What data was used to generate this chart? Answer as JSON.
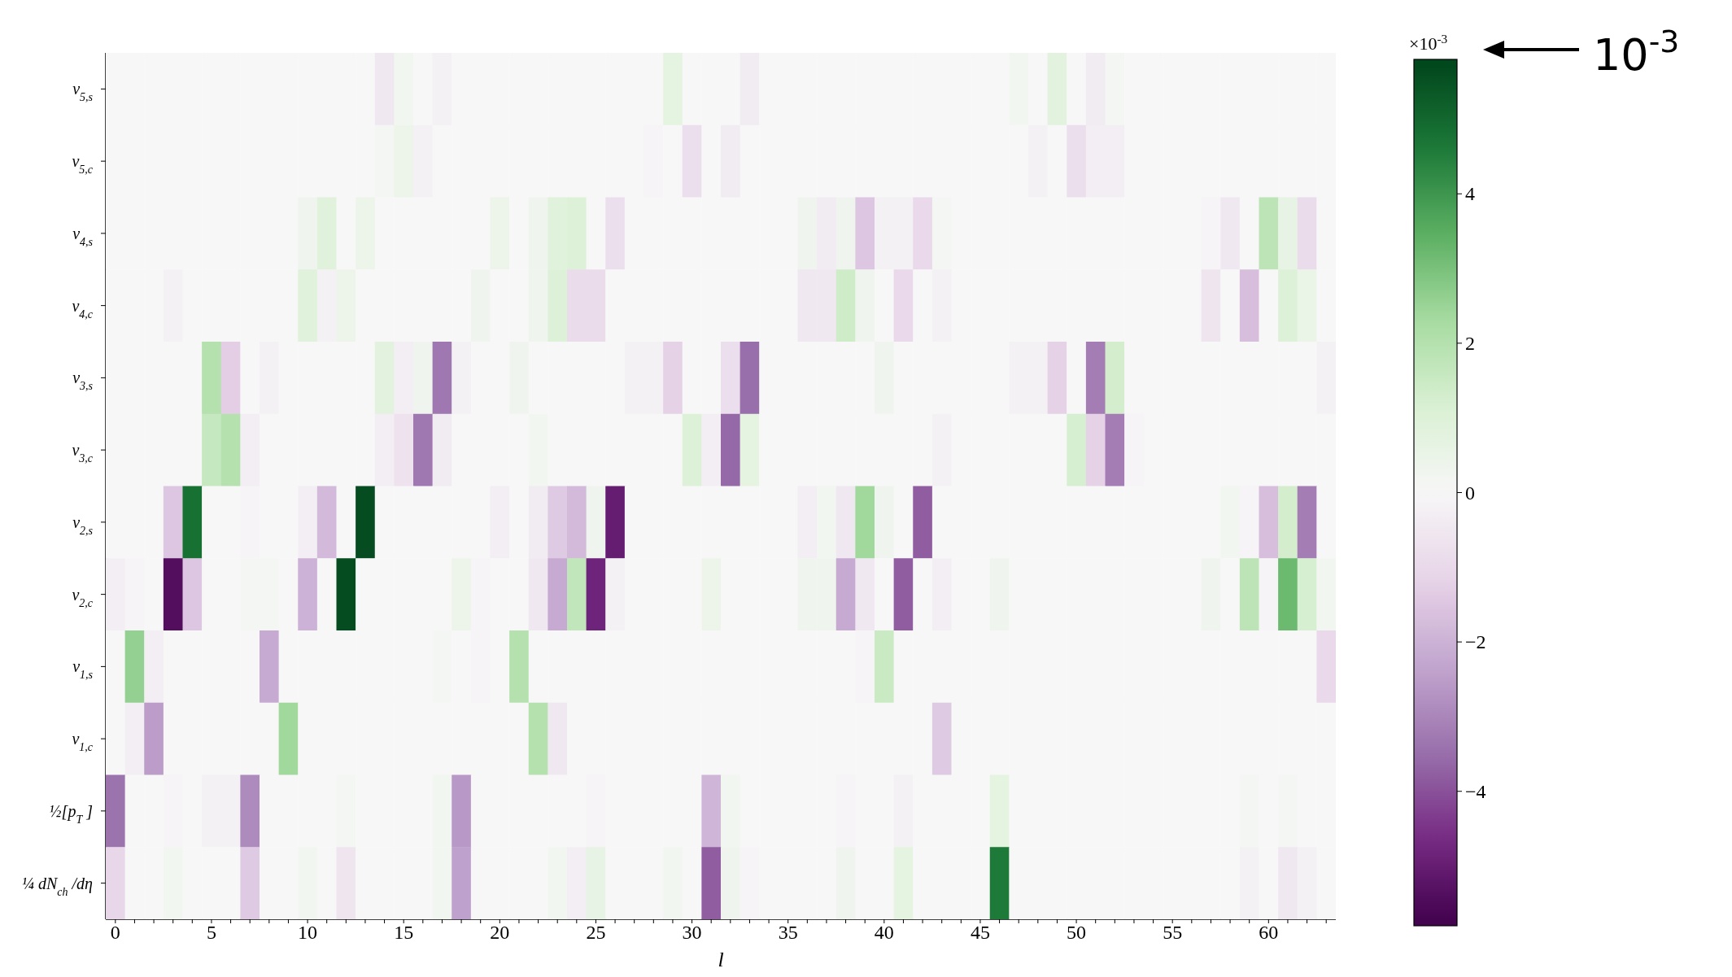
{
  "chart_data": {
    "type": "heatmap",
    "categories": [
      "0",
      null,
      null,
      null,
      null,
      "5",
      null,
      null,
      null,
      null,
      "10",
      null,
      null,
      null,
      null,
      "15",
      null,
      null,
      null,
      null,
      "20",
      null,
      null,
      null,
      null,
      "25",
      null,
      null,
      null,
      null,
      "30",
      null,
      null,
      null,
      null,
      "35",
      null,
      null,
      null,
      null,
      "40",
      null,
      null,
      null,
      null,
      "45",
      null,
      null,
      null,
      null,
      "50",
      null,
      null,
      null,
      null,
      "55",
      null,
      null,
      null,
      null,
      "60",
      null,
      null,
      null
    ],
    "y_categories": [
      "v$_{5,s}$",
      "v$_{5,c}$",
      "v$_{4,s}$",
      "v$_{4,c}$",
      "v$_{3,s}$",
      "v$_{3,c}$",
      "v$_{2,s}$",
      "v$_{2,c}$",
      "v$_{1,s}$",
      "v$_{1,c}$",
      "½[p$_{T}$]",
      "¼ dN$_{ch}$/dη"
    ],
    "cells": [
      [
        0,
        0,
        0,
        0,
        0,
        0,
        0,
        0,
        0,
        0,
        0,
        0,
        0,
        0,
        -0.5,
        0.2,
        0,
        -0.2,
        0,
        0,
        0,
        0,
        0,
        0,
        0,
        0,
        0,
        0,
        0,
        0.7,
        0,
        0,
        0,
        -0.4,
        0,
        0,
        0,
        0,
        0,
        0,
        0,
        0,
        0,
        0,
        0,
        0,
        0,
        0.2,
        0,
        0.8,
        0,
        -0.4,
        0.1,
        0,
        0,
        0,
        0,
        0,
        0,
        0,
        0,
        0,
        0,
        0
      ],
      [
        0,
        0,
        0,
        0,
        0,
        0,
        0,
        0,
        0,
        0,
        0,
        0,
        0,
        0,
        0.1,
        0.4,
        -0.2,
        0,
        0,
        0,
        0,
        0,
        0,
        0,
        0,
        0,
        0,
        0,
        -0.1,
        0,
        -0.8,
        0,
        -0.4,
        0,
        0,
        0,
        0,
        0,
        0,
        0,
        0,
        0,
        0,
        0,
        0,
        0,
        0,
        0,
        -0.2,
        0,
        -0.8,
        -0.3,
        -0.3,
        0,
        0,
        0,
        0,
        0,
        0,
        0,
        0,
        0,
        0,
        0
      ],
      [
        0,
        0,
        0,
        0,
        0,
        0,
        0,
        0,
        0,
        0,
        0.3,
        0.9,
        0,
        0.4,
        0,
        0,
        0,
        0,
        0,
        0,
        0.4,
        0,
        0.3,
        0.9,
        1.0,
        0,
        -0.8,
        0,
        0,
        0,
        0,
        0,
        0,
        0,
        0,
        0,
        0.3,
        -0.4,
        0.3,
        -1.5,
        -0.2,
        -0.2,
        -1.0,
        0.1,
        0,
        0,
        0,
        0,
        0,
        0,
        0,
        0,
        0,
        0,
        0,
        0,
        0,
        -0.1,
        -0.5,
        0,
        1.8,
        0.6,
        -0.9,
        0
      ],
      [
        0,
        0,
        0,
        -0.2,
        0,
        0,
        0,
        0,
        0,
        0,
        0.9,
        -0.2,
        0.4,
        0,
        0,
        0,
        0,
        0,
        0,
        0.3,
        0,
        0,
        0.3,
        1.0,
        -0.9,
        -0.9,
        0,
        0,
        0,
        0,
        0,
        0,
        0,
        0,
        0,
        0,
        -0.5,
        -0.5,
        1.4,
        0.3,
        0,
        -1.0,
        0,
        -0.2,
        0,
        0,
        0,
        0,
        0,
        0,
        0,
        0,
        0,
        0,
        0,
        0,
        0,
        -0.6,
        0,
        -1.7,
        0,
        1.0,
        0.5,
        0
      ],
      [
        0,
        0,
        0,
        0,
        0,
        2.0,
        -1.3,
        0,
        -0.2,
        0,
        0,
        0,
        0,
        0,
        0.8,
        -0.3,
        0.3,
        -3.3,
        -0.2,
        0,
        0,
        0.3,
        0,
        0,
        0,
        0,
        0,
        -0.2,
        -0.2,
        -1.2,
        0,
        0,
        -0.8,
        -3.5,
        0,
        0,
        0,
        0,
        0,
        0,
        0.3,
        0,
        0,
        0,
        0,
        0,
        0,
        -0.2,
        -0.2,
        -1.2,
        0,
        -3.2,
        1.3,
        0,
        0,
        0,
        0,
        0,
        0,
        0,
        0,
        0,
        0,
        -0.2
      ],
      [
        0,
        0,
        0,
        0,
        0,
        1.6,
        2.0,
        -0.3,
        0,
        0,
        0,
        0,
        0,
        0,
        -0.3,
        -0.7,
        -3.3,
        -0.4,
        0,
        0,
        0,
        0,
        0.2,
        0,
        0,
        0,
        0,
        0,
        0,
        0,
        1.0,
        -0.3,
        -3.6,
        0.7,
        0,
        0,
        0,
        0,
        0,
        0,
        0,
        0,
        0,
        -0.2,
        0,
        0,
        0,
        0,
        0,
        0,
        1.2,
        -1.2,
        -3.2,
        -0.1,
        0,
        0,
        0,
        0,
        0,
        0,
        0,
        0,
        0,
        0
      ],
      [
        0,
        0,
        0,
        -1.5,
        4.8,
        0,
        0,
        -0.1,
        0,
        0,
        -0.3,
        -1.8,
        0,
        5.6,
        0,
        0,
        0,
        0,
        0,
        0,
        -0.3,
        0,
        -0.4,
        -1.4,
        -1.8,
        0.3,
        -5.0,
        0,
        0,
        0,
        0,
        0,
        0,
        0,
        0,
        0,
        -0.3,
        0.2,
        -0.5,
        2.4,
        0.3,
        0,
        -3.8,
        0,
        0,
        0,
        0,
        0,
        0,
        0,
        0,
        0,
        0,
        0,
        0,
        0,
        0,
        0,
        0.2,
        -0.1,
        -1.7,
        1.3,
        -3.2,
        0
      ],
      [
        -0.3,
        -0.1,
        0,
        -5.4,
        -1.5,
        0,
        0,
        0.1,
        0.1,
        0,
        -2.0,
        0,
        5.6,
        0,
        0,
        0,
        0,
        0,
        0.4,
        -0.1,
        0,
        0,
        -0.5,
        -2.2,
        1.7,
        -4.8,
        -0.2,
        0,
        0,
        0,
        0,
        0.4,
        0,
        0,
        0,
        0,
        0.3,
        0.3,
        -2.2,
        -0.5,
        0,
        -3.8,
        0,
        -0.3,
        0,
        0,
        0.3,
        0,
        0,
        0,
        0,
        0,
        0,
        0,
        0,
        0,
        0,
        0.3,
        0,
        1.8,
        -0.1,
        3.2,
        1.2,
        0.2
      ],
      [
        0,
        2.6,
        -0.3,
        0,
        0,
        0,
        0,
        0,
        -2.2,
        0,
        0,
        0,
        0,
        0,
        0,
        0,
        0,
        0.1,
        0,
        -0.1,
        0,
        2.0,
        0,
        0,
        0,
        0,
        0,
        0,
        0,
        0,
        0,
        0,
        0,
        0,
        0,
        0,
        0,
        0,
        0,
        -0.1,
        1.5,
        0,
        0,
        0,
        0,
        0,
        0,
        0,
        0,
        0,
        0,
        0,
        0,
        0,
        0,
        0,
        0,
        0,
        0,
        0,
        0,
        0,
        0,
        -1.0
      ],
      [
        0,
        -0.3,
        -2.5,
        0,
        0,
        0,
        0,
        0,
        0,
        2.4,
        0,
        0,
        0,
        0,
        0,
        0,
        0,
        0,
        0,
        0,
        0,
        0,
        2.0,
        -0.5,
        0,
        0,
        0,
        0,
        0,
        0,
        0,
        0,
        0,
        0,
        0,
        0,
        0,
        0,
        0,
        0,
        0,
        0,
        0,
        -1.4,
        0,
        0,
        0,
        0,
        0,
        0,
        0,
        0,
        0,
        0,
        0,
        0,
        0,
        0,
        0,
        0,
        0,
        0,
        0,
        0
      ],
      [
        -3.4,
        0,
        0,
        -0.1,
        0,
        -0.2,
        -0.2,
        -2.9,
        0,
        0,
        0,
        0,
        0.1,
        0,
        0,
        0,
        0,
        0.2,
        -2.6,
        0,
        0,
        0,
        0,
        0,
        0,
        -0.1,
        0,
        0,
        0,
        0,
        0,
        -1.9,
        0.2,
        0,
        0,
        0,
        0,
        0,
        -0.1,
        0,
        0,
        -0.2,
        0,
        0,
        0,
        0,
        0.7,
        0,
        0,
        0,
        0,
        0,
        0,
        0,
        0,
        0,
        0,
        0,
        0,
        0.1,
        0,
        0.1,
        0,
        0
      ],
      [
        -1.1,
        0,
        0,
        0.2,
        0,
        0,
        0,
        -1.4,
        0,
        0,
        0.2,
        0,
        -0.6,
        0,
        0,
        0,
        0,
        0.2,
        -2.4,
        0,
        0,
        0,
        0,
        0.2,
        -0.3,
        0.6,
        0,
        0,
        0,
        0.2,
        0,
        -3.8,
        0.3,
        -0.1,
        0,
        0,
        0,
        0,
        0.3,
        0,
        0,
        0.7,
        0,
        0,
        0,
        0,
        4.6,
        0,
        0,
        0,
        0,
        0,
        0,
        0,
        0,
        0,
        0,
        0,
        0,
        -0.2,
        0,
        -0.5,
        -0.2,
        0
      ]
    ],
    "clim": [
      -5.8,
      5.8
    ],
    "cticks": [
      {
        "value": -4,
        "label": "−4"
      },
      {
        "value": -2,
        "label": "−2"
      },
      0,
      2,
      4
    ],
    "clabel": "×10$^{-3}$",
    "xlabel": "l",
    "annotations": [
      "10$^{-3}$"
    ]
  }
}
